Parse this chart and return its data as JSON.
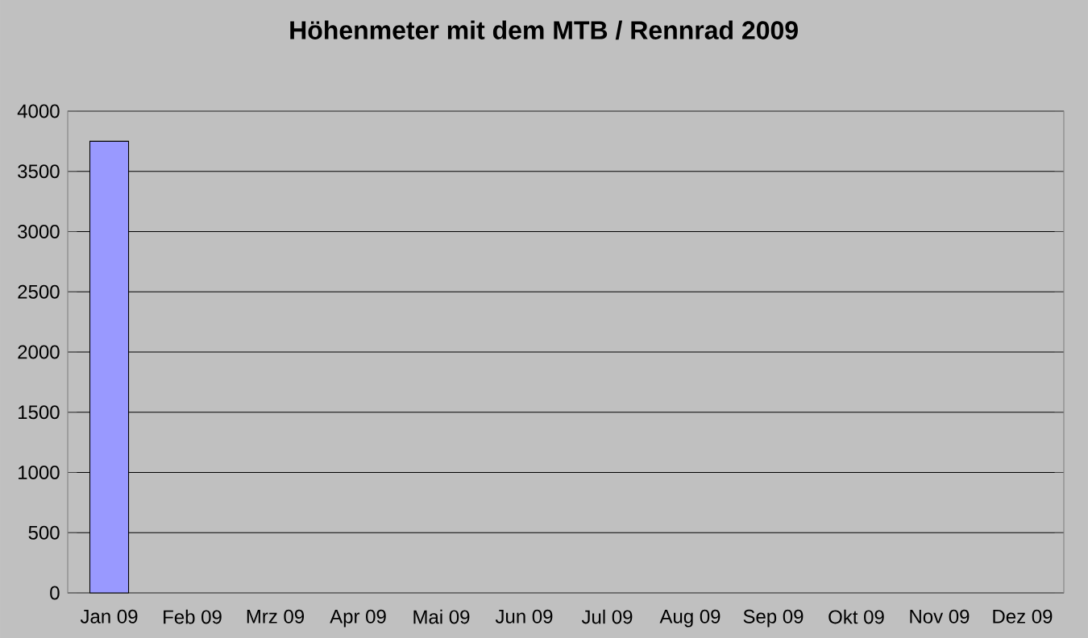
{
  "chart_data": {
    "type": "bar",
    "title": "Höhenmeter mit dem MTB / Rennrad 2009",
    "categories": [
      "Jan 09",
      "Feb 09",
      "Mrz 09",
      "Apr 09",
      "Mai 09",
      "Jun 09",
      "Jul 09",
      "Aug 09",
      "Sep 09",
      "Okt 09",
      "Nov 09",
      "Dez 09"
    ],
    "values": [
      3750,
      null,
      null,
      null,
      null,
      null,
      null,
      null,
      null,
      null,
      null,
      null
    ],
    "color": "#9999ff",
    "ylim": [
      0,
      4000
    ],
    "yticks": [
      0,
      500,
      1000,
      1500,
      2000,
      2500,
      3000,
      3500,
      4000
    ],
    "grid": "y"
  }
}
